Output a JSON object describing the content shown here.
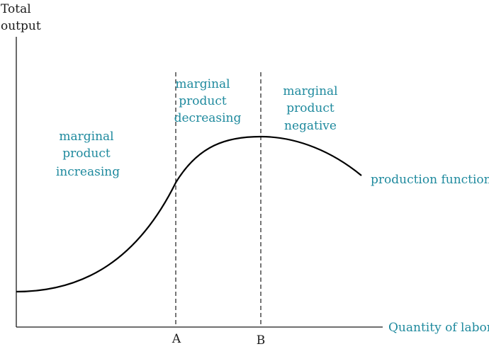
{
  "colors": {
    "axis": "#1b1b1b",
    "curve": "#000000",
    "dashed_line": "#1b1b1b",
    "region_label": "#1f8a9e",
    "axis_label": "#1b1b1b"
  },
  "axes": {
    "y_label_line1": "Total",
    "y_label_line2": "output",
    "x_label": "Quantity of labor"
  },
  "markers": [
    {
      "id": "A",
      "label": "A"
    },
    {
      "id": "B",
      "label": "B"
    }
  ],
  "regions": [
    {
      "id": "increasing",
      "lines": [
        "marginal",
        "product",
        "increasing"
      ]
    },
    {
      "id": "decreasing",
      "lines": [
        "marginal",
        "product",
        "decreasing"
      ]
    },
    {
      "id": "negative",
      "lines": [
        "marginal",
        "product",
        "negative"
      ]
    }
  ],
  "curve": {
    "label": "production function"
  }
}
